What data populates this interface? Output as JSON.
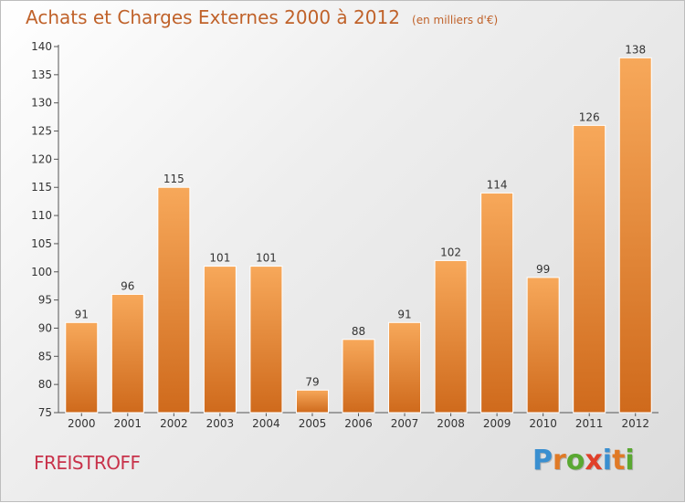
{
  "title": "Achats et Charges Externes 2000 à 2012",
  "unit_note": "(en milliers d'€)",
  "place": "FREISTROFF",
  "logo": {
    "text": "Proxiti",
    "letter_colors": [
      "#3a8fd0",
      "#e07a26",
      "#5aa832",
      "#e0402a",
      "#3a8fd0",
      "#e07a26",
      "#5aa832"
    ]
  },
  "colors": {
    "bar_top": "#f7a85a",
    "bar_bottom": "#cf6a1c",
    "axis": "#555555",
    "grid": "#d8d8d8",
    "title": "#c0622a",
    "place": "#c8324a"
  },
  "chart_data": {
    "type": "bar",
    "title": "Achats et Charges Externes 2000 à 2012",
    "subtitle": "(en milliers d'€)",
    "xlabel": "",
    "ylabel": "",
    "categories": [
      "2000",
      "2001",
      "2002",
      "2003",
      "2004",
      "2005",
      "2006",
      "2007",
      "2008",
      "2009",
      "2010",
      "2011",
      "2012"
    ],
    "values": [
      91,
      96,
      115,
      101,
      101,
      79,
      88,
      91,
      102,
      114,
      99,
      126,
      138
    ],
    "data_labels": [
      "91",
      "96",
      "115",
      "101",
      "101",
      "79",
      "88",
      "91",
      "102",
      "114",
      "99",
      "126",
      "138"
    ],
    "ylim": [
      75,
      140
    ],
    "yticks": [
      75,
      80,
      85,
      90,
      95,
      100,
      105,
      110,
      115,
      120,
      125,
      130,
      135,
      140
    ],
    "ytick_labels": [
      "75",
      "80",
      "85",
      "90",
      "95",
      "100",
      "105",
      "110",
      "115",
      "120",
      "125",
      "130",
      "135",
      "140"
    ],
    "grid": false,
    "legend": "none"
  }
}
